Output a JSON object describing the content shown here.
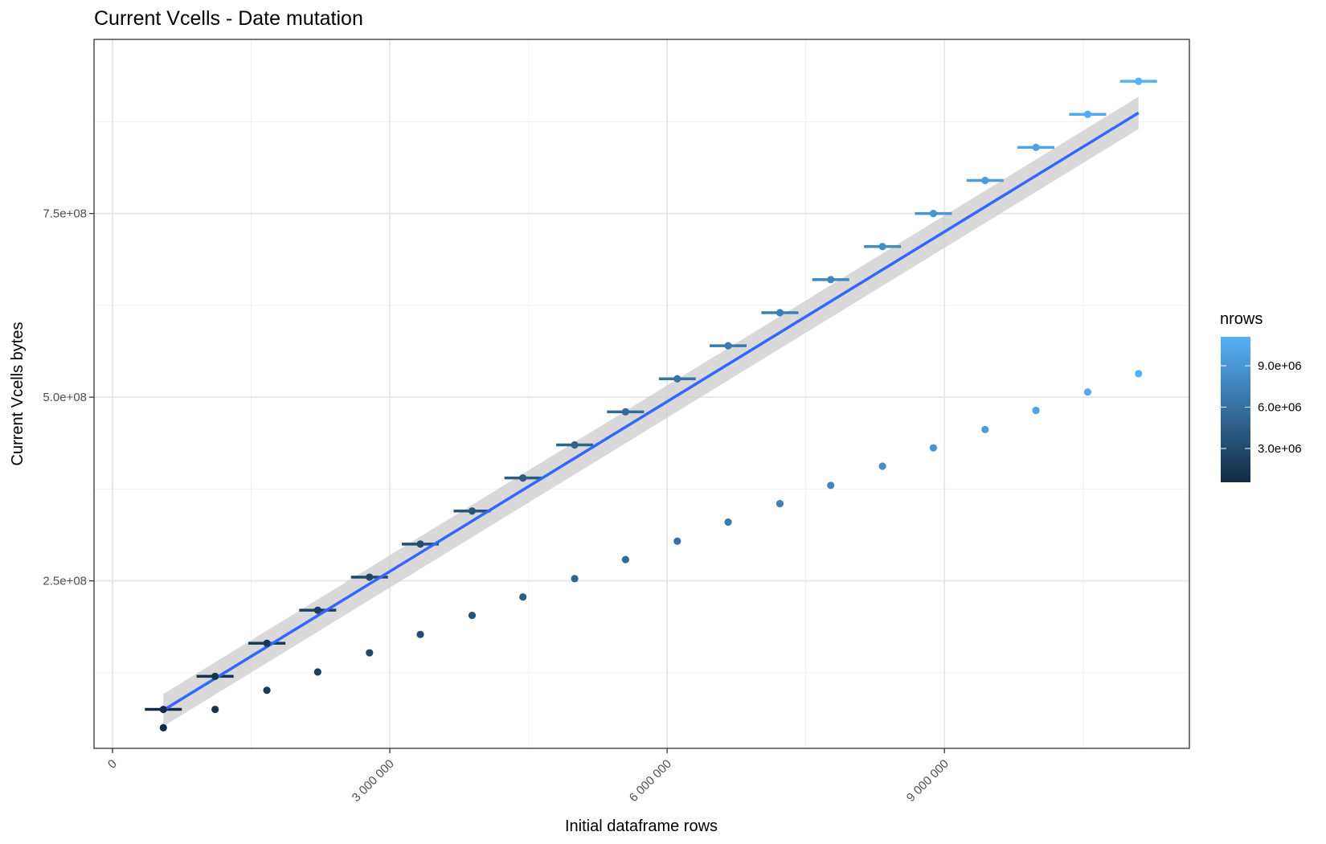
{
  "chart_data": {
    "type": "scatter",
    "title": "Current Vcells - Date mutation",
    "xlabel": "Initial dataframe rows",
    "ylabel": "Current Vcells bytes",
    "xlim": [
      -200000,
      11650000
    ],
    "ylim": [
      22000000,
      987000000
    ],
    "x_ticks": [
      {
        "value": 0,
        "label": "0"
      },
      {
        "value": 3000000,
        "label": "3 000 000"
      },
      {
        "value": 6000000,
        "label": "6 000 000"
      },
      {
        "value": 9000000,
        "label": "9 000 000"
      }
    ],
    "y_ticks": [
      {
        "value": 250000000,
        "label": "2.5e+08"
      },
      {
        "value": 500000000,
        "label": "5.0e+08"
      },
      {
        "value": 750000000,
        "label": "7.5e+08"
      }
    ],
    "grid": true,
    "legend": {
      "title": "nrows",
      "position": "right",
      "low_color": "#132b43",
      "high_color": "#56b1f7",
      "range": [
        550000,
        11100000
      ],
      "ticks": [
        {
          "value": 3000000,
          "label": "3.0e+06"
        },
        {
          "value": 6000000,
          "label": "6.0e+06"
        },
        {
          "value": 9000000,
          "label": "9.0e+06"
        }
      ]
    },
    "series": [
      {
        "values_x": [
          550000,
          1110000,
          1670000,
          2220000,
          2780000,
          3330000,
          3890000,
          4440000,
          5000000,
          5550000,
          6110000,
          6660000,
          7220000,
          7770000,
          8330000,
          8880000,
          9440000,
          9990000,
          10550000,
          11100000
        ],
        "values_y": [
          75000000,
          120000000,
          165000000,
          210000000,
          255000000,
          300000000,
          345000000,
          390000000,
          435000000,
          480000000,
          525000000,
          570000000,
          615000000,
          660000000,
          705000000,
          750000000,
          795000000,
          840000000,
          885000000,
          930000000
        ],
        "error_x_halfwidth": 200000
      },
      {
        "values_x": [
          550000,
          1110000,
          1670000,
          2220000,
          2780000,
          3330000,
          3890000,
          4440000,
          5000000,
          5550000,
          6110000,
          6660000,
          7220000,
          7770000,
          8330000,
          8880000,
          9440000,
          9990000,
          10550000,
          11100000
        ],
        "values_y": [
          50000000,
          75000000,
          101000000,
          126000000,
          152000000,
          177000000,
          203000000,
          228000000,
          253000000,
          279000000,
          304000000,
          330000000,
          355000000,
          380000000,
          406000000,
          431000000,
          456000000,
          482000000,
          507000000,
          532000000
        ]
      }
    ],
    "trend_line": {
      "color": "#3366ff",
      "x": [
        550000,
        11100000
      ],
      "y": [
        74000000,
        887000000
      ],
      "band_halfwidth": [
        22000000,
        22000000
      ],
      "band_color": "#cccccc"
    }
  }
}
